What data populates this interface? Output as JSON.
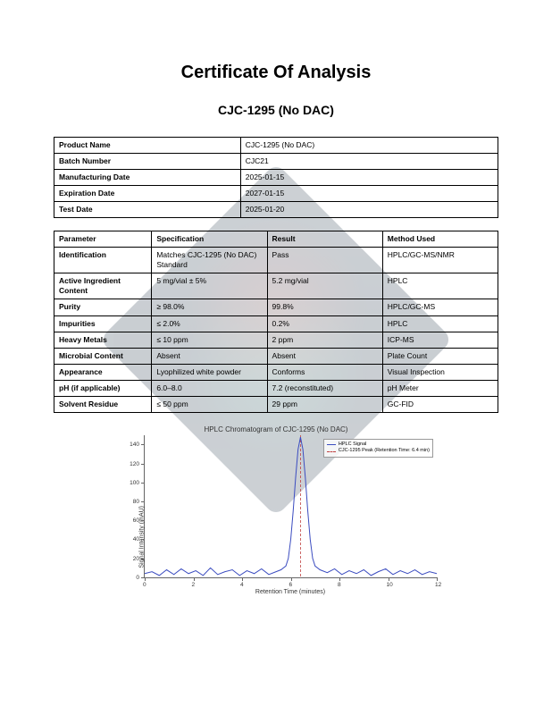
{
  "title": "Certificate Of Analysis",
  "subtitle": "CJC-1295 (No DAC)",
  "info_table": {
    "rows": [
      {
        "label": "Product Name",
        "value": "CJC-1295 (No DAC)"
      },
      {
        "label": "Batch Number",
        "value": "CJC21"
      },
      {
        "label": "Manufacturing Date",
        "value": "2025-01-15"
      },
      {
        "label": "Expiration Date",
        "value": "2027-01-15"
      },
      {
        "label": "Test Date",
        "value": "2025-01-20"
      }
    ]
  },
  "spec_table": {
    "headers": [
      "Parameter",
      "Specification",
      "Result",
      "Method Used"
    ],
    "rows": [
      [
        "Identification",
        "Matches CJC-1295 (No DAC) Standard",
        "Pass",
        "HPLC/GC-MS/NMR"
      ],
      [
        "Active Ingredient Content",
        "5 mg/vial ± 5%",
        "5.2 mg/vial",
        "HPLC"
      ],
      [
        "Purity",
        "≥ 98.0%",
        "99.8%",
        "HPLC/GC-MS"
      ],
      [
        "Impurities",
        "≤ 2.0%",
        "0.2%",
        "HPLC"
      ],
      [
        "Heavy Metals",
        "≤ 10 ppm",
        "2 ppm",
        "ICP-MS"
      ],
      [
        "Microbial Content",
        "Absent",
        "Absent",
        "Plate Count"
      ],
      [
        "Appearance",
        "Lyophilized white powder",
        "Conforms",
        "Visual Inspection"
      ],
      [
        "pH (if applicable)",
        "6.0–8.0",
        "7.2 (reconstituted)",
        "pH Meter"
      ],
      [
        "Solvent Residue",
        "≤ 50 ppm",
        "29 ppm",
        "GC-FID"
      ]
    ]
  },
  "chart": {
    "type": "line",
    "title": "HPLC Chromatogram of CJC-1295 (No DAC)",
    "xlabel": "Retention Time (minutes)",
    "ylabel": "Signal Intensity (mAU)",
    "xlim": [
      0,
      12
    ],
    "ylim": [
      0,
      150
    ],
    "yticks": [
      0,
      20,
      40,
      60,
      80,
      100,
      120,
      140
    ],
    "xticks": [
      0,
      2,
      4,
      6,
      8,
      10,
      12
    ],
    "signal_color": "#3b4cc0",
    "peak_line_color": "#c04040",
    "peak_x": 6.4,
    "background_color": "#ffffff",
    "axis_color": "#666666",
    "legend": {
      "items": [
        {
          "label": "HPLC Signal",
          "color": "#3b4cc0",
          "dash": "solid"
        },
        {
          "label": "CJC-1295 Peak (Retention Time: 6.4 min)",
          "color": "#c04040",
          "dash": "dashed"
        }
      ]
    },
    "signal": [
      [
        0,
        4
      ],
      [
        0.3,
        6
      ],
      [
        0.6,
        2
      ],
      [
        0.9,
        8
      ],
      [
        1.2,
        3
      ],
      [
        1.5,
        9
      ],
      [
        1.8,
        4
      ],
      [
        2.1,
        7
      ],
      [
        2.4,
        2
      ],
      [
        2.7,
        10
      ],
      [
        3.0,
        3
      ],
      [
        3.3,
        6
      ],
      [
        3.6,
        8
      ],
      [
        3.9,
        2
      ],
      [
        4.2,
        7
      ],
      [
        4.5,
        4
      ],
      [
        4.8,
        9
      ],
      [
        5.1,
        3
      ],
      [
        5.4,
        6
      ],
      [
        5.6,
        8
      ],
      [
        5.8,
        12
      ],
      [
        5.9,
        20
      ],
      [
        6.0,
        40
      ],
      [
        6.1,
        70
      ],
      [
        6.2,
        105
      ],
      [
        6.3,
        135
      ],
      [
        6.4,
        148
      ],
      [
        6.5,
        135
      ],
      [
        6.6,
        105
      ],
      [
        6.7,
        70
      ],
      [
        6.8,
        40
      ],
      [
        6.9,
        20
      ],
      [
        7.0,
        12
      ],
      [
        7.2,
        8
      ],
      [
        7.5,
        5
      ],
      [
        7.8,
        9
      ],
      [
        8.1,
        3
      ],
      [
        8.4,
        7
      ],
      [
        8.7,
        4
      ],
      [
        9.0,
        8
      ],
      [
        9.3,
        2
      ],
      [
        9.6,
        6
      ],
      [
        9.9,
        9
      ],
      [
        10.2,
        3
      ],
      [
        10.5,
        7
      ],
      [
        10.8,
        4
      ],
      [
        11.1,
        8
      ],
      [
        11.4,
        3
      ],
      [
        11.7,
        6
      ],
      [
        12.0,
        4
      ]
    ]
  }
}
